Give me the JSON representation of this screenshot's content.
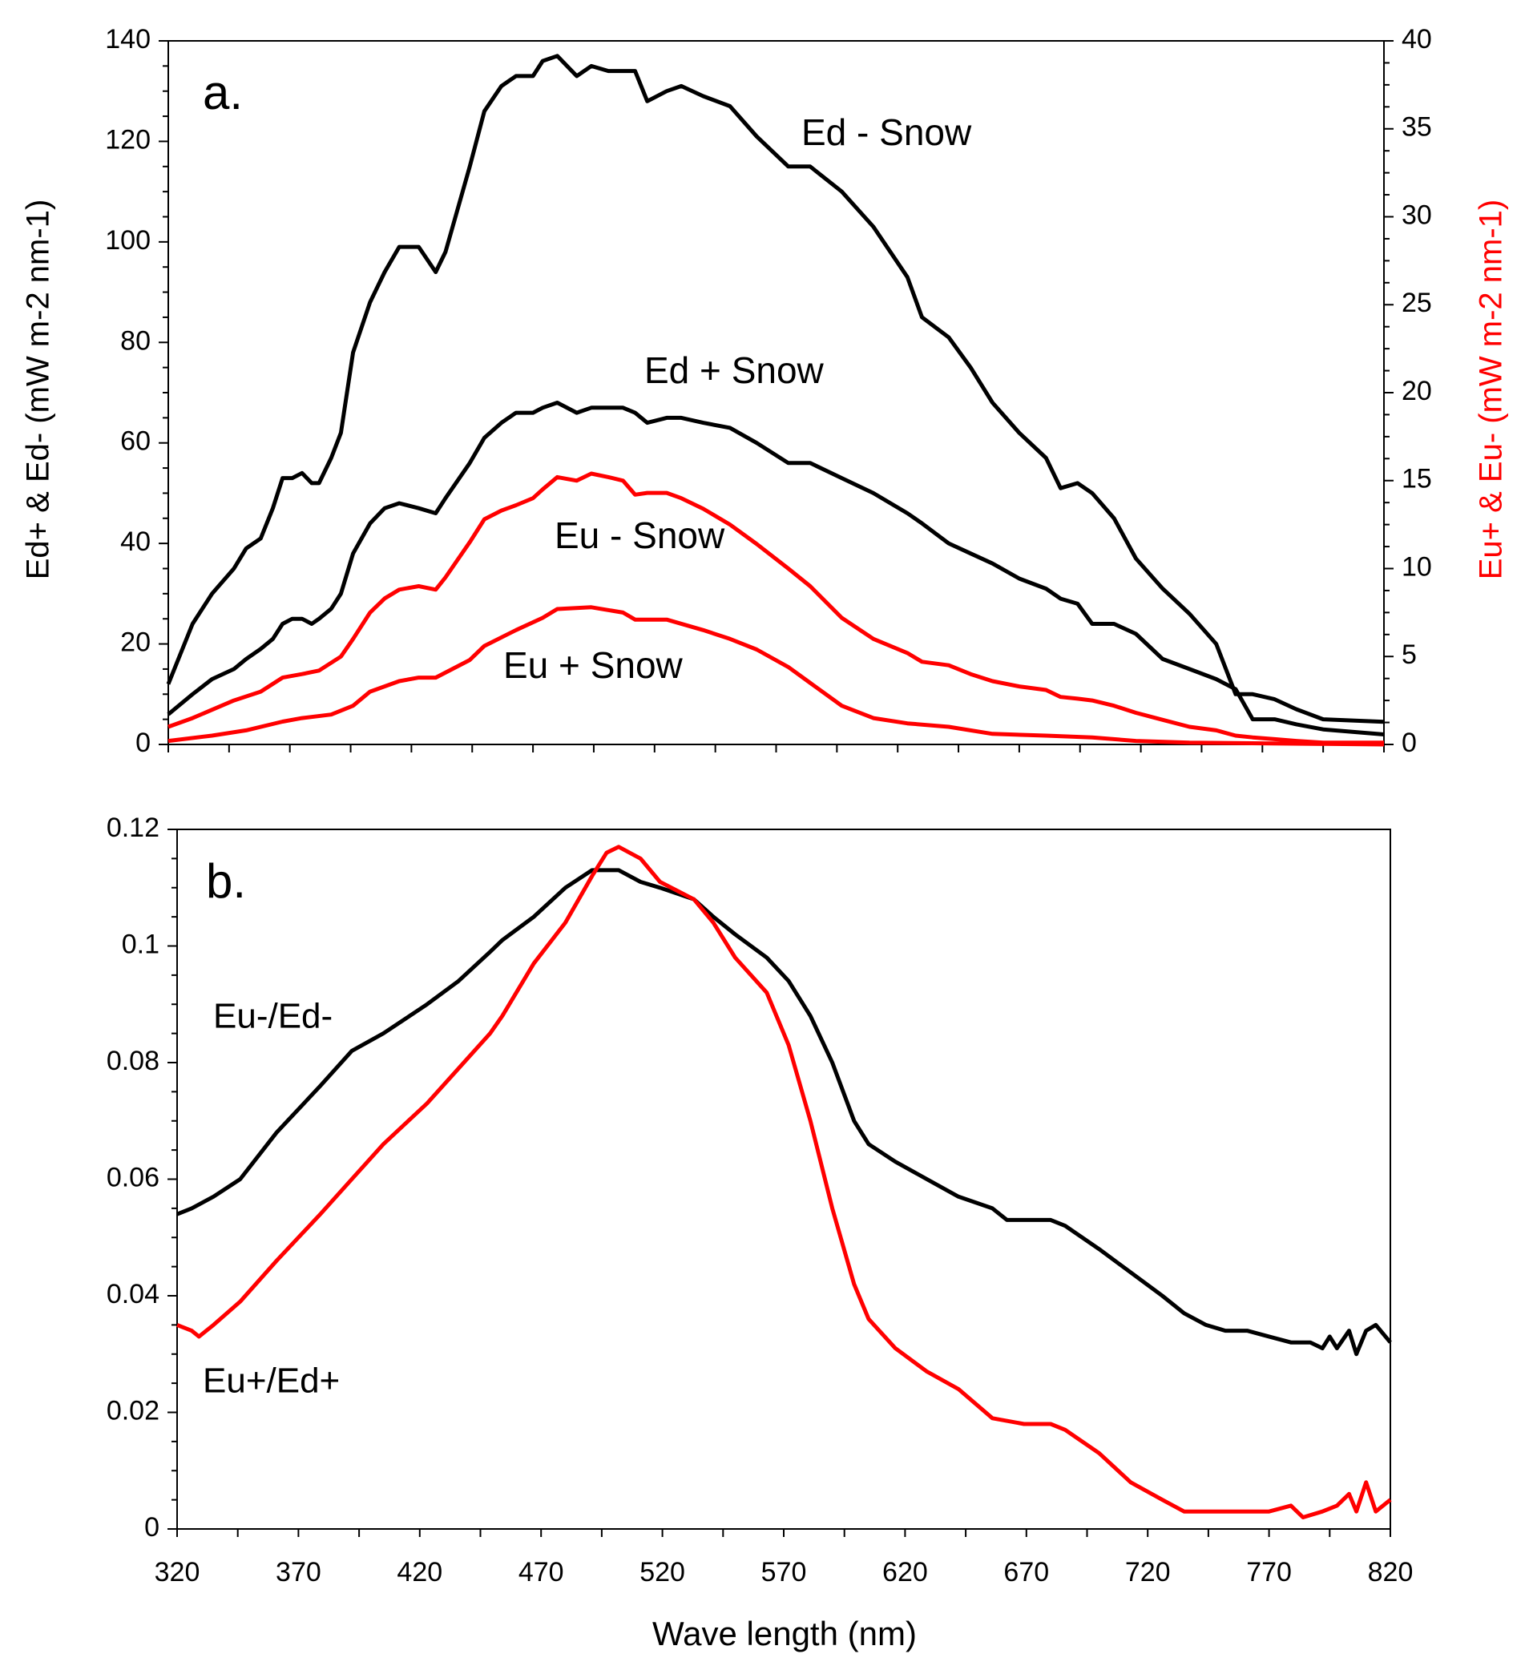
{
  "chart_data": [
    {
      "panel": "a.",
      "type": "line",
      "xlabel": "",
      "ylabel_left": "Ed+ & Ed- (mW m-2 nm-1)",
      "ylabel_right": "Eu+ & Eu- (mW m-2 nm-1)",
      "xlim": [
        320,
        820
      ],
      "ylim_left": [
        0,
        140
      ],
      "ylim_right": [
        0,
        40
      ],
      "yticks_left": [
        0,
        20,
        40,
        60,
        80,
        100,
        120,
        140
      ],
      "yticks_right": [
        0,
        5,
        10,
        15,
        20,
        25,
        30,
        35,
        40
      ],
      "grid": false,
      "colors": {
        "ed": "#000000",
        "eu": "#ff0000"
      },
      "series": [
        {
          "name": "Ed - Snow",
          "axis": "left",
          "color": "#000000",
          "x": [
            320,
            330,
            338,
            347,
            352,
            358,
            363,
            367,
            371,
            375,
            379,
            382,
            387,
            391,
            396,
            403,
            409,
            415,
            423,
            430,
            434,
            444,
            450,
            457,
            463,
            470,
            474,
            480,
            488,
            494,
            501,
            507,
            512,
            517,
            525,
            531,
            540,
            551,
            562,
            575,
            584,
            597,
            610,
            624,
            630,
            641,
            650,
            659,
            670,
            681,
            687,
            694,
            700,
            709,
            718,
            729,
            740,
            751,
            759,
            766,
            775,
            784,
            795,
            820
          ],
          "y": [
            12,
            24,
            30,
            35,
            39,
            41,
            47,
            53,
            53,
            54,
            52,
            52,
            57,
            62,
            78,
            88,
            94,
            99,
            99,
            94,
            98,
            115,
            126,
            131,
            133,
            133,
            136,
            137,
            133,
            135,
            134,
            134,
            134,
            128,
            130,
            131,
            129,
            127,
            121,
            115,
            115,
            110,
            103,
            93,
            85,
            81,
            75,
            68,
            62,
            57,
            51,
            52,
            50,
            45,
            37,
            31,
            26,
            20,
            10,
            10,
            9,
            7,
            5,
            4.5
          ]
        },
        {
          "name": "Ed + Snow",
          "axis": "left",
          "color": "#000000",
          "x": [
            320,
            330,
            338,
            347,
            352,
            358,
            363,
            367,
            371,
            375,
            379,
            382,
            387,
            391,
            396,
            403,
            409,
            415,
            423,
            430,
            434,
            444,
            450,
            457,
            463,
            470,
            474,
            480,
            488,
            494,
            501,
            507,
            512,
            517,
            525,
            531,
            540,
            551,
            562,
            575,
            584,
            597,
            610,
            624,
            630,
            641,
            650,
            659,
            670,
            681,
            687,
            694,
            700,
            709,
            718,
            729,
            740,
            751,
            759,
            766,
            775,
            784,
            795,
            820
          ],
          "y": [
            6,
            10,
            13,
            15,
            17,
            19,
            21,
            24,
            25,
            25,
            24,
            25,
            27,
            30,
            38,
            44,
            47,
            48,
            47,
            46,
            49,
            56,
            61,
            64,
            66,
            66,
            67,
            68,
            66,
            67,
            67,
            67,
            66,
            64,
            65,
            65,
            64,
            63,
            60,
            56,
            56,
            53,
            50,
            46,
            44,
            40,
            38,
            36,
            33,
            31,
            29,
            28,
            24,
            24,
            22,
            17,
            15,
            13,
            11,
            5,
            5,
            4,
            3,
            2
          ]
        },
        {
          "name": "Eu - Snow",
          "axis": "right",
          "color": "#ff0000",
          "x": [
            320,
            330,
            347,
            358,
            367,
            375,
            382,
            391,
            396,
            403,
            409,
            415,
            423,
            430,
            434,
            444,
            450,
            457,
            463,
            470,
            474,
            480,
            488,
            494,
            501,
            507,
            512,
            517,
            525,
            531,
            540,
            551,
            562,
            575,
            584,
            597,
            610,
            624,
            630,
            641,
            650,
            659,
            670,
            681,
            687,
            694,
            700,
            709,
            718,
            729,
            740,
            751,
            759,
            766,
            775,
            784,
            795,
            820
          ],
          "y": [
            1,
            1.5,
            2.5,
            3,
            3.8,
            4,
            4.2,
            5,
            6,
            7.5,
            8.3,
            8.8,
            9,
            8.8,
            9.5,
            11.5,
            12.8,
            13.3,
            13.6,
            14,
            14.5,
            15.2,
            15,
            15.4,
            15.2,
            15,
            14.2,
            14.3,
            14.3,
            14,
            13.4,
            12.5,
            11.4,
            10,
            9,
            7.2,
            6,
            5.2,
            4.7,
            4.5,
            4,
            3.6,
            3.3,
            3.1,
            2.7,
            2.6,
            2.5,
            2.2,
            1.8,
            1.4,
            1,
            0.8,
            0.5,
            0.4,
            0.3,
            0.2,
            0.1,
            0.1
          ]
        },
        {
          "name": "Eu + Snow",
          "axis": "right",
          "color": "#ff0000",
          "x": [
            320,
            338,
            352,
            367,
            375,
            387,
            396,
            403,
            415,
            423,
            430,
            444,
            450,
            463,
            474,
            480,
            494,
            507,
            512,
            525,
            540,
            551,
            562,
            575,
            584,
            597,
            610,
            624,
            641,
            659,
            681,
            700,
            718,
            740,
            820
          ],
          "y": [
            0.2,
            0.5,
            0.8,
            1.3,
            1.5,
            1.7,
            2.2,
            3,
            3.6,
            3.8,
            3.8,
            4.8,
            5.6,
            6.5,
            7.2,
            7.7,
            7.8,
            7.5,
            7.1,
            7.1,
            6.5,
            6,
            5.4,
            4.4,
            3.5,
            2.2,
            1.5,
            1.2,
            1,
            0.6,
            0.5,
            0.4,
            0.2,
            0.1,
            0
          ]
        }
      ]
    },
    {
      "panel": "b.",
      "type": "line",
      "xlabel": "Wave length (nm)",
      "xlim": [
        320,
        820
      ],
      "xticks": [
        320,
        370,
        420,
        470,
        520,
        570,
        620,
        670,
        720,
        770,
        820
      ],
      "ylim": [
        0,
        0.12
      ],
      "yticks": [
        "0",
        "0.02",
        "0.04",
        "0.06",
        "0.08",
        "0.1",
        "0.12"
      ],
      "grid": false,
      "series": [
        {
          "name": "Eu-/Ed-",
          "color": "#000000",
          "x": [
            320,
            326,
            335,
            346,
            361,
            379,
            392,
            405,
            423,
            436,
            449,
            454,
            467,
            480,
            491,
            502,
            511,
            519,
            533,
            541,
            550,
            563,
            572,
            581,
            590,
            599,
            605,
            616,
            629,
            642,
            656,
            662,
            669,
            680,
            686,
            700,
            713,
            726,
            735,
            744,
            752,
            761,
            770,
            779,
            787,
            792,
            795,
            798,
            803,
            806,
            810,
            814,
            820
          ],
          "y": [
            0.054,
            0.055,
            0.057,
            0.06,
            0.068,
            0.076,
            0.082,
            0.085,
            0.09,
            0.094,
            0.099,
            0.101,
            0.105,
            0.11,
            0.113,
            0.113,
            0.111,
            0.11,
            0.108,
            0.105,
            0.102,
            0.098,
            0.094,
            0.088,
            0.08,
            0.07,
            0.066,
            0.063,
            0.06,
            0.057,
            0.055,
            0.053,
            0.053,
            0.053,
            0.052,
            0.048,
            0.044,
            0.04,
            0.037,
            0.035,
            0.034,
            0.034,
            0.033,
            0.032,
            0.032,
            0.031,
            0.033,
            0.031,
            0.034,
            0.03,
            0.034,
            0.035,
            0.032
          ]
        },
        {
          "name": "Eu+/Ed+",
          "color": "#ff0000",
          "x": [
            320,
            326,
            329,
            335,
            346,
            361,
            379,
            392,
            405,
            423,
            436,
            449,
            454,
            467,
            480,
            491,
            497,
            502,
            511,
            519,
            533,
            541,
            550,
            563,
            572,
            581,
            590,
            599,
            605,
            616,
            629,
            642,
            656,
            669,
            680,
            686,
            700,
            713,
            726,
            735,
            744,
            752,
            761,
            770,
            779,
            784,
            792,
            798,
            803,
            806,
            810,
            814,
            820
          ],
          "y": [
            0.035,
            0.034,
            0.033,
            0.035,
            0.039,
            0.046,
            0.054,
            0.06,
            0.066,
            0.073,
            0.079,
            0.085,
            0.088,
            0.097,
            0.104,
            0.112,
            0.116,
            0.117,
            0.115,
            0.111,
            0.108,
            0.104,
            0.098,
            0.092,
            0.083,
            0.07,
            0.055,
            0.042,
            0.036,
            0.031,
            0.027,
            0.024,
            0.019,
            0.018,
            0.018,
            0.017,
            0.013,
            0.008,
            0.005,
            0.003,
            0.003,
            0.003,
            0.003,
            0.003,
            0.004,
            0.002,
            0.003,
            0.004,
            0.006,
            0.003,
            0.008,
            0.003,
            0.005
          ]
        }
      ]
    }
  ]
}
